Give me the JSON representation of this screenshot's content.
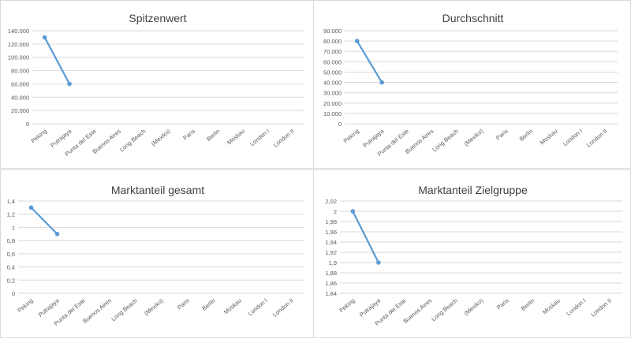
{
  "colors": {
    "series": "#5b9bd5",
    "grid": "#d9d9d9",
    "text": "#595959",
    "title": "#404040"
  },
  "chart_data": [
    {
      "type": "line",
      "title": "Spitzenwert",
      "categories": [
        "Peking",
        "Putrajaya",
        "Punta del Este",
        "Buenos Aires",
        "Long Beach",
        "(Mexiko)",
        "Paris",
        "Berlin",
        "Moskau",
        "London I",
        "London II"
      ],
      "values": [
        130000,
        60000,
        null,
        null,
        null,
        null,
        null,
        null,
        null,
        null,
        null
      ],
      "yticks": [
        "0",
        "20.000",
        "40.000",
        "60.000",
        "80.000",
        "100.000",
        "120.000",
        "140.000"
      ],
      "ylim": [
        0,
        140000
      ],
      "grid": true,
      "legend": "none"
    },
    {
      "type": "line",
      "title": "Durchschnitt",
      "categories": [
        "Peking",
        "Putrajaya",
        "Punta del Este",
        "Buenos Aires",
        "Long Beach",
        "(Mexiko)",
        "Paris",
        "Berlin",
        "Moskau",
        "London I",
        "London II"
      ],
      "values": [
        80000,
        40000,
        null,
        null,
        null,
        null,
        null,
        null,
        null,
        null,
        null
      ],
      "yticks": [
        "0",
        "10.000",
        "20.000",
        "30.000",
        "40.000",
        "50.000",
        "60.000",
        "70.000",
        "80.000",
        "90.000"
      ],
      "ylim": [
        0,
        90000
      ],
      "grid": true,
      "legend": "none"
    },
    {
      "type": "line",
      "title": "Marktanteil gesamt",
      "categories": [
        "Peking",
        "Putrajaya",
        "Punta del Este",
        "Buenos Aires",
        "Long Beach",
        "(Mexiko)",
        "Paris",
        "Berlin",
        "Moskau",
        "London I",
        "London II"
      ],
      "values": [
        1.3,
        0.9,
        null,
        null,
        null,
        null,
        null,
        null,
        null,
        null,
        null
      ],
      "yticks": [
        "0",
        "0,2",
        "0,4",
        "0,6",
        "0,8",
        "1",
        "1,2",
        "1,4"
      ],
      "ylim": [
        0,
        1.4
      ],
      "grid": true,
      "legend": "none"
    },
    {
      "type": "line",
      "title": "Marktanteil Zielgruppe",
      "categories": [
        "Peking",
        "Putrajaya",
        "Punta del Este",
        "Buenos Aires",
        "Long Beach",
        "(Mexiko)",
        "Paris",
        "Berlin",
        "Moskau",
        "London I",
        "London II"
      ],
      "values": [
        2.0,
        1.9,
        null,
        null,
        null,
        null,
        null,
        null,
        null,
        null,
        null
      ],
      "yticks": [
        "1,84",
        "1,86",
        "1,88",
        "1,9",
        "1,92",
        "1,94",
        "1,96",
        "1,98",
        "2",
        "2,02"
      ],
      "ylim": [
        1.84,
        2.02
      ],
      "grid": true,
      "legend": "none"
    }
  ]
}
